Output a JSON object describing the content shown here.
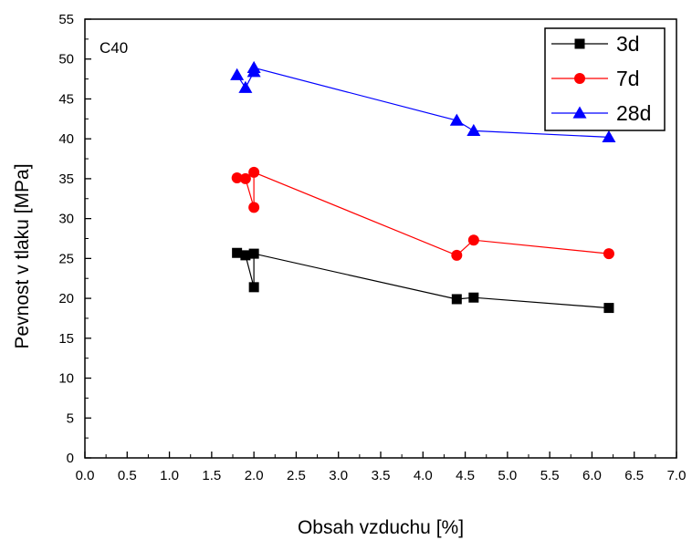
{
  "chart_data": {
    "type": "line",
    "annotation": "C40",
    "xlabel": "Obsah vzduchu [%]",
    "ylabel": "Pevnost v tlaku [MPa]",
    "xlim": [
      0.0,
      7.0
    ],
    "ylim": [
      0,
      55
    ],
    "x_ticks": [
      "0.0",
      "0.5",
      "1.0",
      "1.5",
      "2.0",
      "2.5",
      "3.0",
      "3.5",
      "4.0",
      "4.5",
      "5.0",
      "5.5",
      "6.0",
      "6.5",
      "7.0"
    ],
    "y_ticks": [
      "0",
      "5",
      "10",
      "15",
      "20",
      "25",
      "30",
      "35",
      "40",
      "45",
      "50",
      "55"
    ],
    "grid": false,
    "legend_position": "top-right",
    "series": [
      {
        "name": "3d",
        "color": "#000000",
        "marker": "square",
        "points": [
          [
            1.8,
            25.7
          ],
          [
            1.9,
            25.4
          ],
          [
            2.0,
            21.4
          ],
          [
            2.0,
            25.6
          ],
          [
            4.4,
            19.9
          ],
          [
            4.6,
            20.1
          ],
          [
            6.2,
            18.8
          ]
        ]
      },
      {
        "name": "7d",
        "color": "#ff0000",
        "marker": "circle",
        "points": [
          [
            1.8,
            35.1
          ],
          [
            1.9,
            35.0
          ],
          [
            2.0,
            31.4
          ],
          [
            2.0,
            35.8
          ],
          [
            4.4,
            25.4
          ],
          [
            4.6,
            27.3
          ],
          [
            6.2,
            25.6
          ]
        ]
      },
      {
        "name": "28d",
        "color": "#0000ff",
        "marker": "triangle",
        "points": [
          [
            1.8,
            48.0
          ],
          [
            1.9,
            46.4
          ],
          [
            2.0,
            48.4
          ],
          [
            2.0,
            48.9
          ],
          [
            4.4,
            42.3
          ],
          [
            4.6,
            41.0
          ],
          [
            6.2,
            40.2
          ]
        ]
      }
    ]
  }
}
